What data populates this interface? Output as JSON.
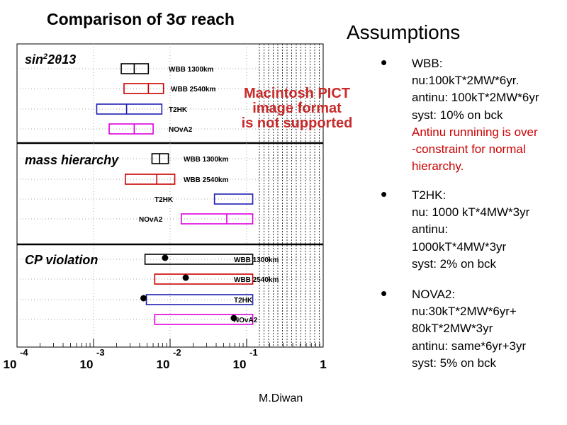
{
  "slide": {
    "title": "Comparison of 3σ reach",
    "pict_lines": [
      "Macintosh PICT",
      "image format",
      "is not supported"
    ],
    "footer": "M.Diwan"
  },
  "assumptions": {
    "heading": "Assumptions",
    "bullet_glyph": "•",
    "items": [
      {
        "lines": [
          "WBB:",
          "nu:100kT*2MW*6yr.",
          "antinu: 100kT*2MW*6yr",
          "syst: 10% on bck"
        ],
        "note_lines": [
          "Antinu runnining is over",
          "-constraint for normal",
          "hierarchy."
        ]
      },
      {
        "lines": [
          "T2HK:",
          "nu: 1000 kT*4MW*3yr",
          "antinu:",
          "1000kT*4MW*3yr",
          "syst: 2% on bck"
        ],
        "note_lines": []
      },
      {
        "lines": [
          "NOVA2:",
          "nu:30kT*2MW*6yr+",
          "80kT*2MW*3yr",
          "antinu:  same*6yr+3yr",
          "syst: 5% on bck"
        ],
        "note_lines": []
      }
    ]
  },
  "colors": {
    "WBB 1300km": "#000000",
    "WBB 2540km": "#cc0000",
    "T2HK": "#1f1fb0",
    "NOvA2": "#dd00dd"
  },
  "chart_data": {
    "type": "range-bar",
    "title": "Comparison of 3σ reach",
    "xscale": "log",
    "xlim": [
      0.0001,
      1
    ],
    "xticks": [
      {
        "base": "10",
        "exp": "-4",
        "value": 0.0001
      },
      {
        "base": "10",
        "exp": "-3",
        "value": 0.001
      },
      {
        "base": "10",
        "exp": "-2",
        "value": 0.01
      },
      {
        "base": "10",
        "exp": "-1",
        "value": 0.1
      },
      {
        "base": "1",
        "exp": "",
        "value": 1
      }
    ],
    "panels": [
      {
        "title": "sin²2θ13",
        "title_main": "sin",
        "title_sup": "2",
        "title_rest": "2θ13",
        "rows": [
          {
            "label": "WBB 1300km",
            "range": [
              0.0023,
              0.0052
            ],
            "marker": 0.0034,
            "dot": false
          },
          {
            "label": "WBB 2540km",
            "range": [
              0.0025,
              0.0082
            ],
            "marker": 0.0052,
            "dot": false
          },
          {
            "label": "T2HK",
            "range": [
              0.0011,
              0.0078
            ],
            "marker": 0.0027,
            "dot": false
          },
          {
            "label": "NOvA2",
            "range": [
              0.0016,
              0.006
            ],
            "marker": 0.0034,
            "dot": false
          }
        ]
      },
      {
        "title": "mass hierarchy",
        "rows": [
          {
            "label": "WBB 1300km",
            "range": [
              0.0058,
              0.0095
            ],
            "marker": 0.0073,
            "dot": false
          },
          {
            "label": "WBB 2540km",
            "range": [
              0.0026,
              0.0115
            ],
            "marker": 0.0067,
            "dot": false
          },
          {
            "label": "T2HK",
            "range": [
              0.038,
              0.12
            ],
            "marker": null,
            "dot": false
          },
          {
            "label": "NOvA2",
            "range": [
              0.014,
              0.12
            ],
            "marker": 0.055,
            "dot": false
          }
        ]
      },
      {
        "title": "CP violation",
        "rows": [
          {
            "label": "WBB 1300km",
            "range": [
              0.0047,
              0.12
            ],
            "marker": 0.0086,
            "dot": true
          },
          {
            "label": "WBB 2540km",
            "range": [
              0.0063,
              0.12
            ],
            "marker": 0.016,
            "dot": true
          },
          {
            "label": "T2HK",
            "range": [
              0.0049,
              0.12
            ],
            "marker": 0.0045,
            "dot": true
          },
          {
            "label": "NOvA2",
            "range": [
              0.0063,
              0.12
            ],
            "marker": 0.068,
            "dot": true
          }
        ]
      }
    ]
  }
}
